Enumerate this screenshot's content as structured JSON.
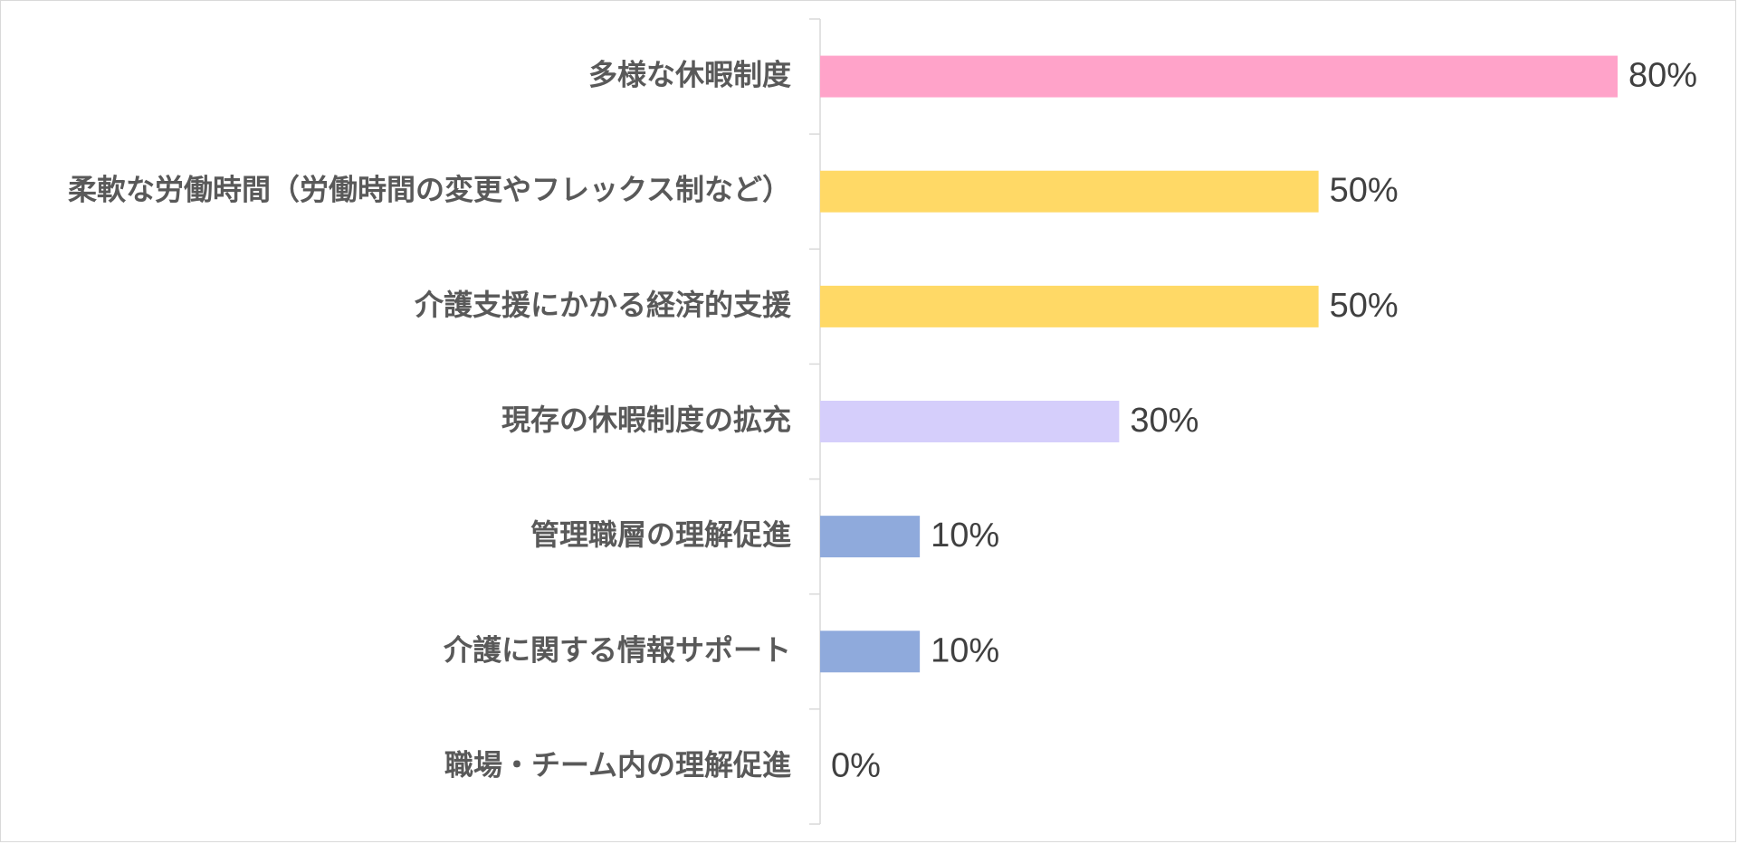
{
  "chart_data": {
    "type": "bar",
    "orientation": "horizontal",
    "title": "",
    "xlabel": "",
    "ylabel": "",
    "xlim": [
      0,
      80
    ],
    "grid": false,
    "legend": "none",
    "categories": [
      "多様な休暇制度",
      "柔軟な労働時間（労働時間の変更やフレックス制など）",
      "介護支援にかかる経済的支援",
      "現存の休暇制度の拡充",
      "管理職層の理解促進",
      "介護に関する情報サポート",
      "職場・チーム内の理解促進"
    ],
    "values": [
      80,
      50,
      50,
      30,
      10,
      10,
      0
    ],
    "data_labels": [
      "80%",
      "50%",
      "50%",
      "30%",
      "10%",
      "10%",
      "0%"
    ],
    "bar_colors": [
      "#FFA3C9",
      "#FFD966",
      "#FFD966",
      "#D5CEFB",
      "#8FAADC",
      "#8FAADC",
      "#8FAADC"
    ],
    "axis_color": "#D9D9D9"
  }
}
